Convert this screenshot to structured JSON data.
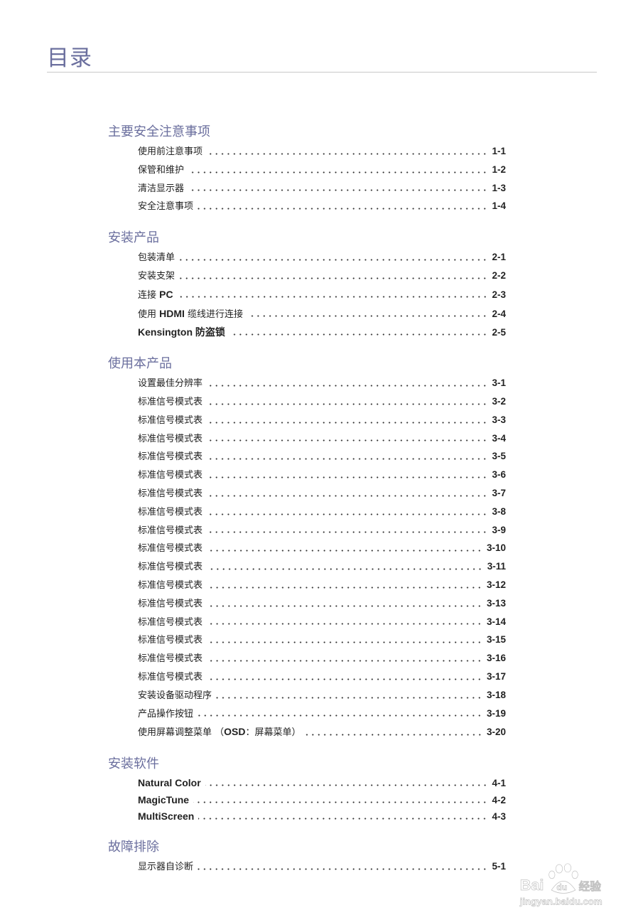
{
  "page_title": "目录",
  "sections": [
    {
      "heading": "主要安全注意事项",
      "entries": [
        {
          "label": "使用前注意事项",
          "page": "1-1"
        },
        {
          "label": "保管和维护",
          "page": "1-2"
        },
        {
          "label": "清洁显示器",
          "page": "1-3"
        },
        {
          "label": "安全注意事项",
          "page": "1-4"
        }
      ]
    },
    {
      "heading": "安装产品",
      "entries": [
        {
          "label": "包装清单",
          "page": "2-1"
        },
        {
          "label": "安装支架",
          "page": "2-2"
        },
        {
          "label": "连接 PC",
          "page": "2-3"
        },
        {
          "label": "使用 HDMI 缆线进行连接",
          "page": "2-4"
        },
        {
          "label": "Kensington 防盗锁",
          "page": "2-5"
        }
      ]
    },
    {
      "heading": "使用本产品",
      "entries": [
        {
          "label": "设置最佳分辨率",
          "page": "3-1"
        },
        {
          "label": "标准信号模式表",
          "page": "3-2"
        },
        {
          "label": "标准信号模式表",
          "page": "3-3"
        },
        {
          "label": "标准信号模式表",
          "page": "3-4"
        },
        {
          "label": "标准信号模式表",
          "page": "3-5"
        },
        {
          "label": "标准信号模式表",
          "page": "3-6"
        },
        {
          "label": "标准信号模式表",
          "page": "3-7"
        },
        {
          "label": "标准信号模式表",
          "page": "3-8"
        },
        {
          "label": "标准信号模式表",
          "page": "3-9"
        },
        {
          "label": "标准信号模式表",
          "page": "3-10"
        },
        {
          "label": "标准信号模式表",
          "page": "3-11"
        },
        {
          "label": "标准信号模式表",
          "page": "3-12"
        },
        {
          "label": "标准信号模式表",
          "page": "3-13"
        },
        {
          "label": "标准信号模式表",
          "page": "3-14"
        },
        {
          "label": "标准信号模式表",
          "page": "3-15"
        },
        {
          "label": "标准信号模式表",
          "page": "3-16"
        },
        {
          "label": "标准信号模式表",
          "page": "3-17"
        },
        {
          "label": "安装设备驱动程序",
          "page": "3-18"
        },
        {
          "label": "产品操作按钮",
          "page": "3-19"
        },
        {
          "label": "使用屏幕调整菜单 （OSD：屏幕菜单）",
          "page": "3-20"
        }
      ]
    },
    {
      "heading": "安装软件",
      "latin": true,
      "entries": [
        {
          "label": "Natural Color",
          "page": "4-1"
        },
        {
          "label": "MagicTune",
          "page": "4-2"
        },
        {
          "label": "MultiScreen",
          "page": "4-3"
        }
      ]
    },
    {
      "heading": "故障排除",
      "entries": [
        {
          "label": "显示器自诊断",
          "page": "5-1"
        }
      ]
    }
  ],
  "watermark": {
    "logo_text": "Bai du 经验",
    "url_text": "jingyan.baidu.com"
  },
  "colors": {
    "heading": "#6b6f9e",
    "text": "#222222",
    "rule": "#c8c8c8"
  }
}
